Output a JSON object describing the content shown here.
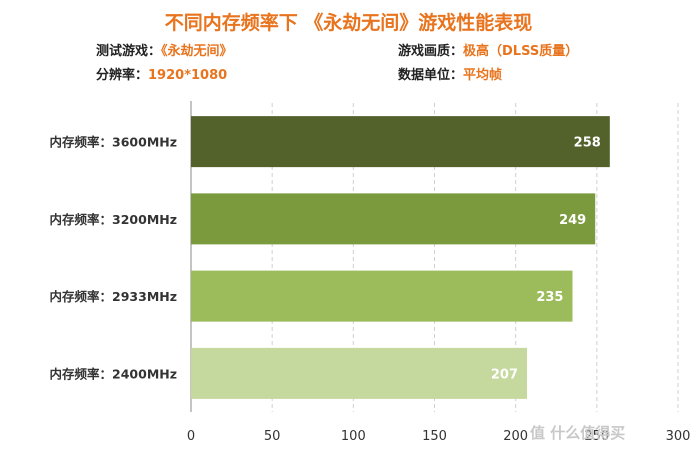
{
  "title": "不同内存频率下 《永劫无间》游戏性能表现",
  "info": {
    "game_label": "测试游戏：",
    "game_value": "《永劫无间》",
    "quality_label": "游戏画质：",
    "quality_value": "极高（DLSS质量）",
    "resolution_label": "分辨率：",
    "resolution_value": "1920*1080",
    "unit_label": "数据单位：",
    "unit_value": "平均帧"
  },
  "watermark": "值 什么值得买",
  "colors": {
    "title": "#e8741e",
    "bars": [
      "#52622a",
      "#7b9a3d",
      "#9cbb5a",
      "#c5d89d"
    ]
  },
  "chart_data": {
    "type": "bar",
    "orientation": "horizontal",
    "categories": [
      "内存频率：3600MHz",
      "内存频率：3200MHz",
      "内存频率：2933MHz",
      "内存频率：2400MHz"
    ],
    "values": [
      258,
      249,
      235,
      207
    ],
    "xlim": [
      0,
      300
    ],
    "xticks": [
      0,
      50,
      100,
      150,
      200,
      250,
      300
    ],
    "grid": "vertical-dashed",
    "data_labels": true
  }
}
